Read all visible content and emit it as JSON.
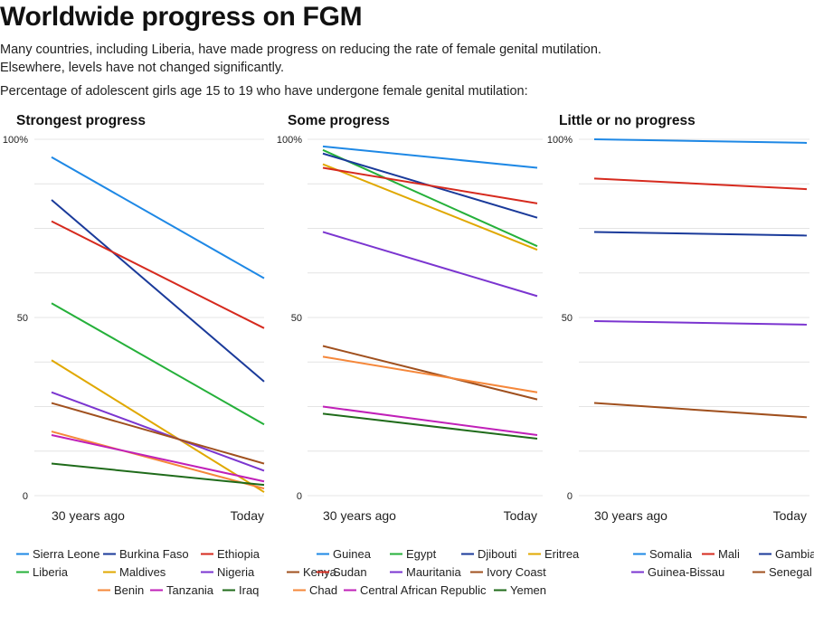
{
  "title": "Worldwide progress on FGM",
  "subtitle_line1": "Many countries, including Liberia, have made progress on reducing the rate of female genital mutilation.",
  "subtitle_line2": "Elsewhere, levels have not changed significantly.",
  "chart_caption": "Percentage of adolescent girls age 15 to 19 who have undergone female genital mutilation:",
  "chart_data": [
    {
      "type": "line",
      "title": "Strongest progress",
      "x": [
        "30 years ago",
        "Today"
      ],
      "ylim": [
        0,
        100
      ],
      "yticks": [
        "100%",
        "50",
        "0"
      ],
      "grid": true,
      "legend_position": "bottom",
      "series": [
        {
          "name": "Sierra Leone",
          "color": "#1e88e5",
          "values": [
            95,
            61
          ]
        },
        {
          "name": "Burkina Faso",
          "color": "#1a3a9a",
          "values": [
            83,
            32
          ]
        },
        {
          "name": "Ethiopia",
          "color": "#d62a1e",
          "values": [
            77,
            47
          ]
        },
        {
          "name": "Liberia",
          "color": "#25b03a",
          "values": [
            54,
            20
          ]
        },
        {
          "name": "Maldives",
          "color": "#e0a800",
          "values": [
            38,
            1
          ]
        },
        {
          "name": "Nigeria",
          "color": "#7b35d0",
          "values": [
            29,
            7
          ]
        },
        {
          "name": "Kenya",
          "color": "#a0501e",
          "values": [
            26,
            9
          ]
        },
        {
          "name": "Benin",
          "color": "#f5873a",
          "values": [
            18,
            2
          ]
        },
        {
          "name": "Tanzania",
          "color": "#c020b8",
          "values": [
            17,
            4
          ]
        },
        {
          "name": "Iraq",
          "color": "#1f6b1a",
          "values": [
            9,
            3
          ]
        }
      ]
    },
    {
      "type": "line",
      "title": "Some progress",
      "x": [
        "30 years ago",
        "Today"
      ],
      "ylim": [
        0,
        100
      ],
      "yticks": [
        "100%",
        "50",
        "0"
      ],
      "grid": true,
      "legend_position": "bottom",
      "series": [
        {
          "name": "Guinea",
          "color": "#1e88e5",
          "values": [
            98,
            92
          ]
        },
        {
          "name": "Egypt",
          "color": "#25b03a",
          "values": [
            97,
            70
          ]
        },
        {
          "name": "Djibouti",
          "color": "#1a3a9a",
          "values": [
            96,
            78
          ]
        },
        {
          "name": "Eritrea",
          "color": "#e0a800",
          "values": [
            93,
            69
          ]
        },
        {
          "name": "Sudan",
          "color": "#d62a1e",
          "values": [
            92,
            82
          ]
        },
        {
          "name": "Mauritania",
          "color": "#7b35d0",
          "values": [
            74,
            56
          ]
        },
        {
          "name": "Ivory Coast",
          "color": "#a0501e",
          "values": [
            42,
            27
          ]
        },
        {
          "name": "Chad",
          "color": "#f5873a",
          "values": [
            39,
            29
          ]
        },
        {
          "name": "Central African Republic",
          "color": "#c020b8",
          "values": [
            25,
            17
          ]
        },
        {
          "name": "Yemen",
          "color": "#1f6b1a",
          "values": [
            23,
            16
          ]
        }
      ]
    },
    {
      "type": "line",
      "title": "Little or no progress",
      "x": [
        "30 years ago",
        "Today"
      ],
      "ylim": [
        0,
        100
      ],
      "yticks": [
        "100%",
        "50",
        "0"
      ],
      "grid": true,
      "legend_position": "bottom",
      "series": [
        {
          "name": "Somalia",
          "color": "#1e88e5",
          "values": [
            100,
            99
          ]
        },
        {
          "name": "Mali",
          "color": "#d62a1e",
          "values": [
            89,
            86
          ]
        },
        {
          "name": "Gambia",
          "color": "#1a3a9a",
          "values": [
            74,
            73
          ]
        },
        {
          "name": "Guinea-Bissau",
          "color": "#7b35d0",
          "values": [
            49,
            48
          ]
        },
        {
          "name": "Senegal",
          "color": "#a0501e",
          "values": [
            26,
            22
          ]
        }
      ]
    }
  ]
}
